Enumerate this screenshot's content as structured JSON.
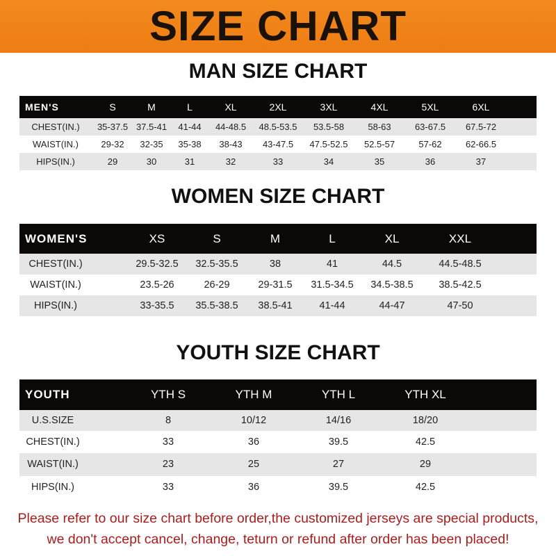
{
  "banner": {
    "title": "SIZE CHART",
    "color": "#f08419"
  },
  "men": {
    "title": "MAN SIZE CHART",
    "header": [
      "MEN'S",
      "S",
      "M",
      "L",
      "XL",
      "2XL",
      "3XL",
      "4XL",
      "5XL",
      "6XL"
    ],
    "rows": [
      [
        "CHEST(IN.)",
        "35-37.5",
        "37.5-41",
        "41-44",
        "44-48.5",
        "48.5-53.5",
        "53.5-58",
        "58-63",
        "63-67.5",
        "67.5-72"
      ],
      [
        "WAIST(IN.)",
        "29-32",
        "32-35",
        "35-38",
        "38-43",
        "43-47.5",
        "47.5-52.5",
        "52.5-57",
        "57-62",
        "62-66.5"
      ],
      [
        "HIPS(IN.)",
        "29",
        "30",
        "31",
        "32",
        "33",
        "34",
        "35",
        "36",
        "37"
      ]
    ]
  },
  "women": {
    "title": "WOMEN SIZE CHART",
    "header": [
      "WOMEN'S",
      "XS",
      "S",
      "M",
      "L",
      "XL",
      "XXL"
    ],
    "rows": [
      [
        "CHEST(IN.)",
        "29.5-32.5",
        "32.5-35.5",
        "38",
        "41",
        "44.5",
        "44.5-48.5"
      ],
      [
        "WAIST(IN.)",
        "23.5-26",
        "26-29",
        "29-31.5",
        "31.5-34.5",
        "34.5-38.5",
        "38.5-42.5"
      ],
      [
        "HIPS(IN.)",
        "33-35.5",
        "35.5-38.5",
        "38.5-41",
        "41-44",
        "44-47",
        "47-50"
      ]
    ]
  },
  "youth": {
    "title": "YOUTH SIZE CHART",
    "header": [
      "YOUTH",
      "YTH S",
      "YTH M",
      "YTH L",
      "YTH XL"
    ],
    "rows": [
      [
        "U.S.SIZE",
        "8",
        "10/12",
        "14/16",
        "18/20"
      ],
      [
        "CHEST(IN.)",
        "33",
        "36",
        "39.5",
        "42.5"
      ],
      [
        "WAIST(IN.)",
        "23",
        "25",
        "27",
        "29"
      ],
      [
        "HIPS(IN.)",
        "33",
        "36",
        "39.5",
        "42.5"
      ]
    ]
  },
  "notice": {
    "line1": "Please refer to our size chart before order,the customized jerseys are special products,",
    "line2": "we don't accept cancel, change, teturn or refund after order has been placed!",
    "color": "#a81d1d"
  }
}
